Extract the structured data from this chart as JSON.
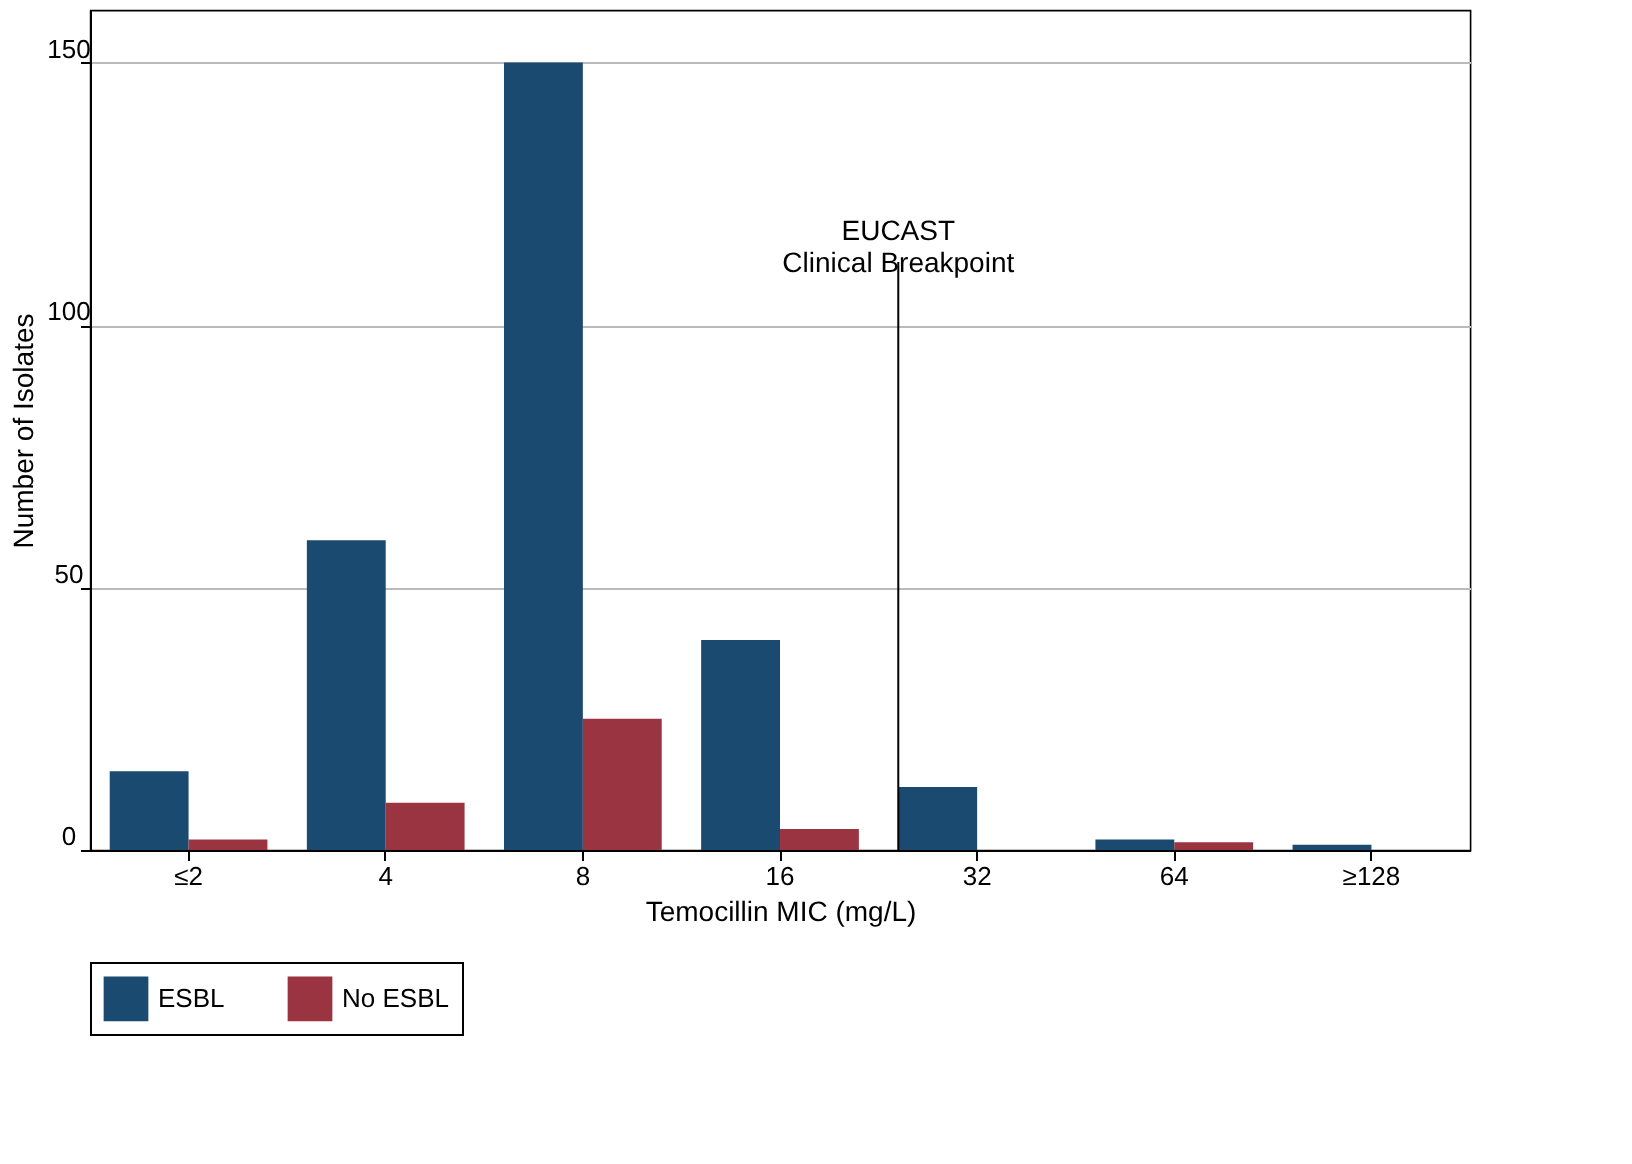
{
  "chart_data": {
    "type": "bar",
    "xlabel": "Temocillin MIC (mg/L)",
    "ylabel": "Number of Isolates",
    "categories": [
      "≤2",
      "4",
      "8",
      "16",
      "32",
      "64",
      "≥128"
    ],
    "series": [
      {
        "name": "ESBL",
        "color": "#1b4a70",
        "values": [
          15,
          59,
          150,
          40,
          12,
          2,
          1
        ]
      },
      {
        "name": "No ESBL",
        "color": "#9a3440",
        "values": [
          2,
          9,
          25,
          4,
          0,
          1.5,
          0
        ]
      }
    ],
    "ylim": [
      0,
      160
    ],
    "yticks": [
      0,
      50,
      100,
      150
    ],
    "grid": "y",
    "legend": "bottom",
    "ref_lines": [
      {
        "axis": "x",
        "value": "32",
        "label": "EUCAST\nClinical Breakpoint",
        "color": "#000000"
      }
    ]
  }
}
